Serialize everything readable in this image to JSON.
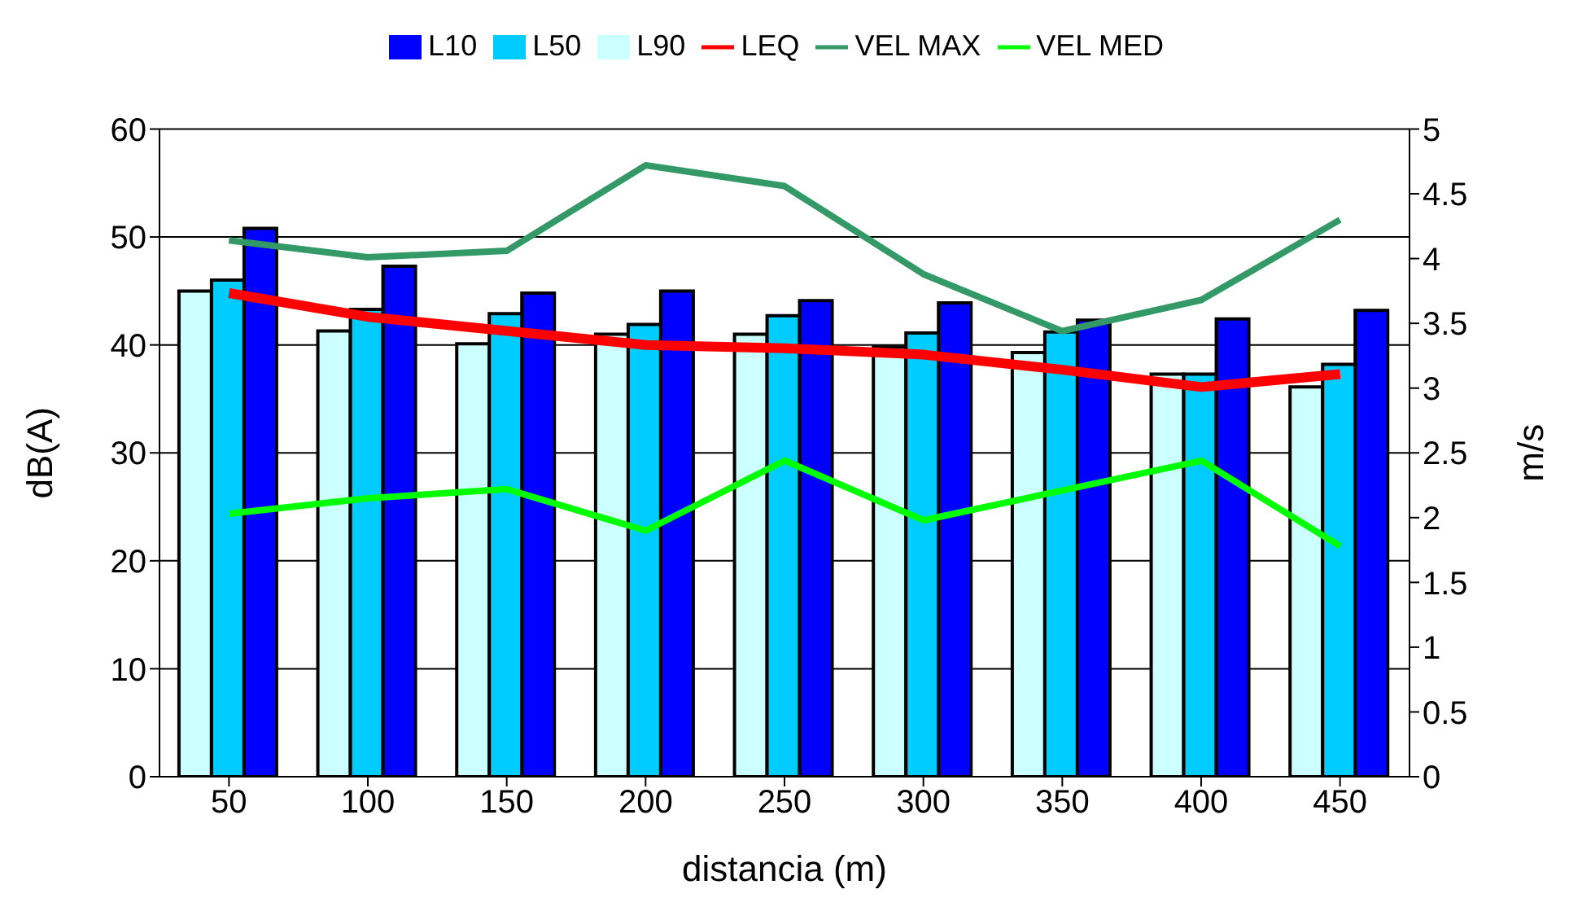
{
  "chart_data": {
    "type": "bar",
    "xlabel": "distancia (m)",
    "ylabel": "dB(A)",
    "y2label": "m/s",
    "categories": [
      "50",
      "100",
      "150",
      "200",
      "250",
      "300",
      "350",
      "400",
      "450"
    ],
    "series": [
      {
        "name": "L90",
        "color": "#ccffff",
        "values": [
          45,
          41.3,
          40.1,
          41,
          41,
          39.8,
          39.3,
          37.3,
          36.1
        ]
      },
      {
        "name": "L50",
        "color": "#00ccff",
        "values": [
          46,
          43.3,
          42.9,
          41.9,
          42.7,
          41.1,
          41.2,
          37.3,
          38.2
        ]
      },
      {
        "name": "L10",
        "color": "#0000ff",
        "values": [
          50.8,
          47.3,
          44.8,
          45,
          44.1,
          43.9,
          42.3,
          42.4,
          43.2
        ]
      },
      {
        "name": "LEQ",
        "type": "line",
        "color": "#ff0000",
        "values": [
          44.8,
          42.6,
          41.3,
          40,
          39.7,
          39.1,
          37.7,
          36.1,
          37.3
        ]
      },
      {
        "name": "VEL MAX",
        "type": "line",
        "axis": "y2",
        "color": "#339966",
        "values": [
          4.14,
          4.01,
          4.06,
          4.72,
          4.56,
          3.88,
          3.44,
          3.68,
          4.3
        ]
      },
      {
        "name": "VEL MED",
        "type": "line",
        "axis": "y2",
        "color": "#00ff00",
        "values": [
          2.03,
          2.15,
          2.22,
          1.9,
          2.44,
          1.98,
          2.21,
          2.44,
          1.78
        ]
      }
    ],
    "ylim": [
      0,
      60
    ],
    "yticks": [
      0,
      10,
      20,
      30,
      40,
      50,
      60
    ],
    "y2lim": [
      0,
      5
    ],
    "y2ticks": [
      0,
      0.5,
      1,
      1.5,
      2,
      2.5,
      3,
      3.5,
      4,
      4.5,
      5
    ],
    "grid": "y",
    "legend": "top",
    "marker": "none"
  }
}
